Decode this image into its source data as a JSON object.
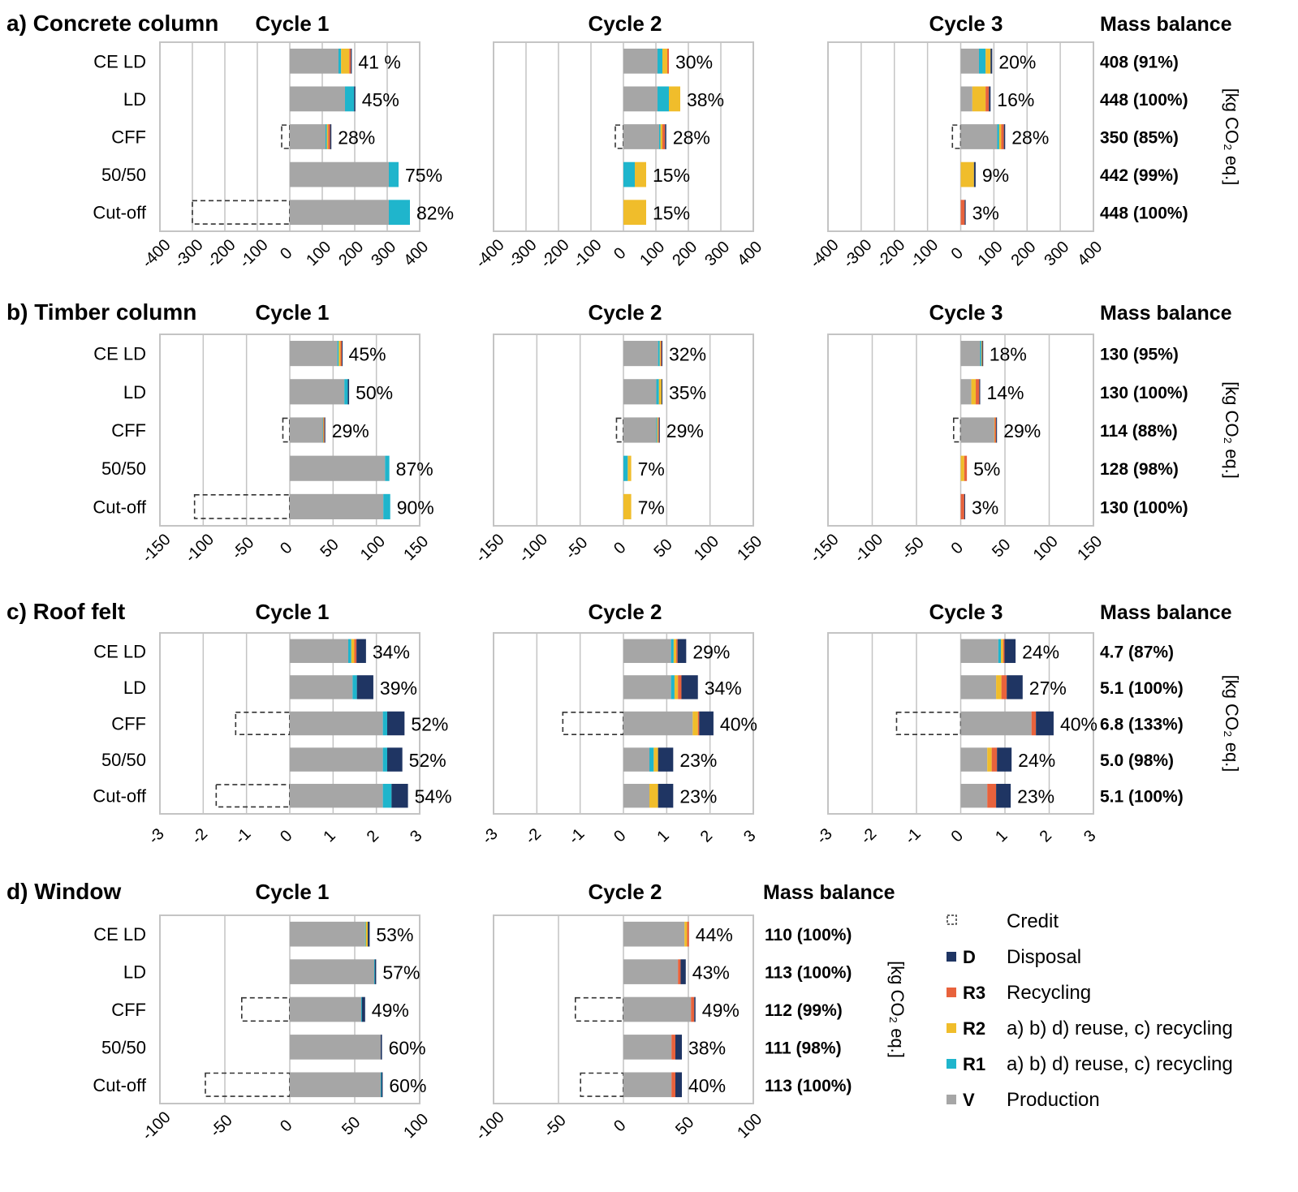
{
  "colors": {
    "V": "#a6a6a6",
    "R1": "#1fb5cc",
    "R2": "#f0bd2b",
    "R3": "#e8623c",
    "D": "#1f3563",
    "grid": "#c4c4c4",
    "frame": "#c4c4c4",
    "credit_stroke": "#333333"
  },
  "cycle_titles": [
    "Cycle 1",
    "Cycle 2",
    "Cycle 3"
  ],
  "mass_balance_title": "Mass balance",
  "unit_label": "[kg CO₂ eq.]",
  "legend": [
    {
      "code": "",
      "text": "Credit",
      "type": "credit"
    },
    {
      "code": "D",
      "text": "Disposal",
      "color_key": "D"
    },
    {
      "code": "R3",
      "text": "Recycling",
      "color_key": "R3"
    },
    {
      "code": "R2",
      "text": "a) b) d) reuse, c) recycling",
      "color_key": "R2"
    },
    {
      "code": "R1",
      "text": "a) b) d) reuse, c) recycling",
      "color_key": "R1"
    },
    {
      "code": "V",
      "text": "Production",
      "color_key": "V"
    }
  ],
  "chart_data": [
    {
      "type": "bar",
      "title": "a) Concrete column",
      "categories": [
        "CE LD",
        "LD",
        "CFF",
        "50/50",
        "Cut-off"
      ],
      "xlim": [
        -400,
        400
      ],
      "ticks": [
        -400,
        -300,
        -200,
        -100,
        0,
        100,
        200,
        300,
        400
      ],
      "stack_order": [
        "V",
        "R1",
        "R2",
        "R3",
        "D"
      ],
      "cycles": [
        {
          "name": "Cycle 1",
          "rows": [
            {
              "V": 150,
              "R1": 8,
              "R2": 25,
              "R3": 5,
              "D": 3,
              "credit": 0,
              "label": "41 %"
            },
            {
              "V": 170,
              "R1": 28,
              "R2": 0,
              "R3": 0,
              "D": 4,
              "credit": 0,
              "label": "45%"
            },
            {
              "V": 110,
              "R1": 4,
              "R2": 4,
              "R3": 6,
              "D": 4,
              "credit": -25,
              "label": "28%"
            },
            {
              "V": 305,
              "R1": 30,
              "R2": 0,
              "R3": 0,
              "D": 0,
              "credit": 0,
              "label": "75%"
            },
            {
              "V": 305,
              "R1": 65,
              "R2": 0,
              "R3": 0,
              "D": 0,
              "credit": -300,
              "label": "82%"
            }
          ]
        },
        {
          "name": "Cycle 2",
          "rows": [
            {
              "V": 105,
              "R1": 15,
              "R2": 15,
              "R3": 5,
              "D": 0,
              "credit": 0,
              "label": "30%"
            },
            {
              "V": 105,
              "R1": 35,
              "R2": 35,
              "R3": 0,
              "D": 0,
              "credit": 0,
              "label": "38%"
            },
            {
              "V": 110,
              "R1": 4,
              "R2": 6,
              "R3": 8,
              "D": 4,
              "credit": -25,
              "label": "28%"
            },
            {
              "V": 0,
              "R1": 35,
              "R2": 35,
              "R3": 0,
              "D": 0,
              "credit": 0,
              "label": "15%"
            },
            {
              "V": 0,
              "R1": 0,
              "R2": 70,
              "R3": 0,
              "D": 0,
              "credit": 0,
              "label": "15%"
            }
          ]
        },
        {
          "name": "Cycle 3",
          "rows": [
            {
              "V": 55,
              "R1": 20,
              "R2": 15,
              "R3": 0,
              "D": 5,
              "credit": 0,
              "label": "20%"
            },
            {
              "V": 35,
              "R1": 0,
              "R2": 40,
              "R3": 10,
              "D": 5,
              "credit": 0,
              "label": "16%"
            },
            {
              "V": 110,
              "R1": 6,
              "R2": 6,
              "R3": 8,
              "D": 4,
              "credit": -25,
              "label": "28%"
            },
            {
              "V": 0,
              "R1": 0,
              "R2": 40,
              "R3": 0,
              "D": 5,
              "credit": 0,
              "label": "9%"
            },
            {
              "V": 0,
              "R1": 0,
              "R2": 0,
              "R3": 12,
              "D": 3,
              "credit": 0,
              "label": "3%"
            }
          ]
        }
      ],
      "mass_balance": [
        "408 (91%)",
        "448 (100%)",
        "350 (85%)",
        "442 (99%)",
        "448 (100%)"
      ]
    },
    {
      "type": "bar",
      "title": "b) Timber column",
      "categories": [
        "CE LD",
        "LD",
        "CFF",
        "50/50",
        "Cut-off"
      ],
      "xlim": [
        -150,
        150
      ],
      "ticks": [
        -150,
        -100,
        -50,
        0,
        50,
        100,
        150
      ],
      "stack_order": [
        "V",
        "R1",
        "R2",
        "R3",
        "D"
      ],
      "cycles": [
        {
          "name": "Cycle 1",
          "rows": [
            {
              "V": 55,
              "R1": 1.5,
              "R2": 2,
              "R3": 1.5,
              "D": 0.5,
              "credit": 0,
              "label": "45%"
            },
            {
              "V": 63,
              "R1": 4,
              "R2": 0,
              "R3": 0,
              "D": 1.5,
              "credit": 0,
              "label": "50%"
            },
            {
              "V": 38,
              "R1": 0.5,
              "R2": 0.5,
              "R3": 1,
              "D": 1,
              "credit": -8,
              "label": "29%"
            },
            {
              "V": 110,
              "R1": 5,
              "R2": 0,
              "R3": 0,
              "D": 0,
              "credit": 0,
              "label": "87%"
            },
            {
              "V": 108,
              "R1": 8,
              "R2": 0,
              "R3": 0,
              "D": 0,
              "credit": -110,
              "label": "90%"
            }
          ]
        },
        {
          "name": "Cycle 2",
          "rows": [
            {
              "V": 40,
              "R1": 2,
              "R2": 1,
              "R3": 1,
              "D": 1,
              "credit": 0,
              "label": "32%"
            },
            {
              "V": 38,
              "R1": 3,
              "R2": 3,
              "R3": 0,
              "D": 1,
              "credit": 0,
              "label": "35%"
            },
            {
              "V": 38,
              "R1": 1,
              "R2": 1,
              "R3": 1,
              "D": 1,
              "credit": -8,
              "label": "29%"
            },
            {
              "V": 0,
              "R1": 5,
              "R2": 4,
              "R3": 0,
              "D": 0,
              "credit": 0,
              "label": "7%"
            },
            {
              "V": 0,
              "R1": 0,
              "R2": 9,
              "R3": 0,
              "D": 0,
              "credit": 0,
              "label": "7%"
            }
          ]
        },
        {
          "name": "Cycle 3",
          "rows": [
            {
              "V": 22,
              "R1": 1.5,
              "R2": 0.5,
              "R3": 0.5,
              "D": 0.5,
              "credit": 0,
              "label": "18%"
            },
            {
              "V": 12,
              "R1": 0,
              "R2": 5,
              "R3": 4,
              "D": 1,
              "credit": 0,
              "label": "14%"
            },
            {
              "V": 38,
              "R1": 0,
              "R2": 0.5,
              "R3": 1.5,
              "D": 1,
              "credit": -8,
              "label": "29%"
            },
            {
              "V": 0,
              "R1": 0,
              "R2": 4,
              "R3": 3,
              "D": 0,
              "credit": 0,
              "label": "5%"
            },
            {
              "V": 0,
              "R1": 0,
              "R2": 0,
              "R3": 4,
              "D": 1,
              "credit": 0,
              "label": "3%"
            }
          ]
        }
      ],
      "mass_balance": [
        "130 (95%)",
        "130 (100%)",
        "114 (88%)",
        "128 (98%)",
        "130 (100%)"
      ]
    },
    {
      "type": "bar",
      "title": "c) Roof felt",
      "categories": [
        "CE LD",
        "LD",
        "CFF",
        "50/50",
        "Cut-off"
      ],
      "xlim": [
        -3,
        3
      ],
      "ticks": [
        -3,
        -2,
        -1,
        0,
        1,
        2,
        3
      ],
      "stack_order": [
        "V",
        "R1",
        "R2",
        "R3",
        "D"
      ],
      "cycles": [
        {
          "name": "Cycle 1",
          "rows": [
            {
              "V": 1.35,
              "R1": 0.07,
              "R2": 0.07,
              "R3": 0.05,
              "D": 0.22,
              "credit": 0,
              "label": "34%"
            },
            {
              "V": 1.45,
              "R1": 0.1,
              "R2": 0,
              "R3": 0,
              "D": 0.38,
              "credit": 0,
              "label": "39%"
            },
            {
              "V": 2.15,
              "R1": 0.1,
              "R2": 0,
              "R3": 0,
              "D": 0.4,
              "credit": -1.25,
              "label": "52%"
            },
            {
              "V": 2.15,
              "R1": 0.1,
              "R2": 0,
              "R3": 0,
              "D": 0.35,
              "credit": 0,
              "label": "52%"
            },
            {
              "V": 2.15,
              "R1": 0.2,
              "R2": 0,
              "R3": 0,
              "D": 0.38,
              "credit": -1.7,
              "label": "54%"
            }
          ]
        },
        {
          "name": "Cycle 2",
          "rows": [
            {
              "V": 1.1,
              "R1": 0.06,
              "R2": 0.06,
              "R3": 0.03,
              "D": 0.2,
              "credit": 0,
              "label": "29%"
            },
            {
              "V": 1.1,
              "R1": 0.08,
              "R2": 0.08,
              "R3": 0.08,
              "D": 0.38,
              "credit": 0,
              "label": "34%"
            },
            {
              "V": 1.6,
              "R1": 0,
              "R2": 0.12,
              "R3": 0.03,
              "D": 0.33,
              "credit": -1.4,
              "label": "40%"
            },
            {
              "V": 0.6,
              "R1": 0.1,
              "R2": 0.1,
              "R3": 0,
              "D": 0.35,
              "credit": 0,
              "label": "23%"
            },
            {
              "V": 0.6,
              "R1": 0,
              "R2": 0.2,
              "R3": 0,
              "D": 0.35,
              "credit": 0,
              "label": "23%"
            }
          ]
        },
        {
          "name": "Cycle 3",
          "rows": [
            {
              "V": 0.85,
              "R1": 0.06,
              "R2": 0.05,
              "R3": 0.03,
              "D": 0.25,
              "credit": 0,
              "label": "24%"
            },
            {
              "V": 0.8,
              "R1": 0,
              "R2": 0.12,
              "R3": 0.12,
              "D": 0.36,
              "credit": 0,
              "label": "27%"
            },
            {
              "V": 1.6,
              "R1": 0,
              "R2": 0,
              "R3": 0.1,
              "D": 0.4,
              "credit": -1.45,
              "label": "40%"
            },
            {
              "V": 0.6,
              "R1": 0,
              "R2": 0.1,
              "R3": 0.12,
              "D": 0.33,
              "credit": 0,
              "label": "24%"
            },
            {
              "V": 0.6,
              "R1": 0,
              "R2": 0,
              "R3": 0.2,
              "D": 0.33,
              "credit": 0,
              "label": "23%"
            }
          ]
        }
      ],
      "mass_balance": [
        "4.7 (87%)",
        "5.1 (100%)",
        "6.8 (133%)",
        "5.0 (98%)",
        "5.1 (100%)"
      ]
    },
    {
      "type": "bar",
      "title": "d) Window",
      "categories": [
        "CE LD",
        "LD",
        "CFF",
        "50/50",
        "Cut-off"
      ],
      "xlim": [
        -100,
        100
      ],
      "ticks": [
        -100,
        -50,
        0,
        50,
        100
      ],
      "stack_order": [
        "V",
        "R1",
        "R2",
        "R3",
        "D"
      ],
      "cycles": [
        {
          "name": "Cycle 1",
          "rows": [
            {
              "V": 58,
              "R1": 0.5,
              "R2": 1.5,
              "R3": 0,
              "D": 1.5,
              "credit": 0,
              "label": "53%"
            },
            {
              "V": 65,
              "R1": 0.5,
              "R2": 0,
              "R3": 0,
              "D": 1,
              "credit": 0,
              "label": "57%"
            },
            {
              "V": 55,
              "R1": 0.5,
              "R2": 0,
              "R3": 0,
              "D": 2.5,
              "credit": -37,
              "label": "49%"
            },
            {
              "V": 70,
              "R1": 0,
              "R2": 0,
              "R3": 0,
              "D": 1,
              "credit": 0,
              "label": "60%"
            },
            {
              "V": 70,
              "R1": 0.5,
              "R2": 0,
              "R3": 0,
              "D": 1,
              "credit": -65,
              "label": "60%"
            }
          ]
        },
        {
          "name": "Cycle 2",
          "rows": [
            {
              "V": 47,
              "R1": 0,
              "R2": 2,
              "R3": 1.5,
              "D": 0,
              "credit": 0,
              "label": "44%"
            },
            {
              "V": 42,
              "R1": 0,
              "R2": 0,
              "R3": 2,
              "D": 4,
              "credit": 0,
              "label": "43%"
            },
            {
              "V": 52,
              "R1": 0,
              "R2": 0,
              "R3": 2.5,
              "D": 1,
              "credit": -37,
              "label": "49%"
            },
            {
              "V": 37,
              "R1": 0,
              "R2": 0,
              "R3": 3,
              "D": 5,
              "credit": 0,
              "label": "38%"
            },
            {
              "V": 37,
              "R1": 0,
              "R2": 0,
              "R3": 3,
              "D": 5,
              "credit": -33,
              "label": "40%"
            }
          ]
        }
      ],
      "mass_balance": [
        "110 (100%)",
        "113 (100%)",
        "112 (99%)",
        "111 (98%)",
        "113 (100%)"
      ]
    }
  ]
}
